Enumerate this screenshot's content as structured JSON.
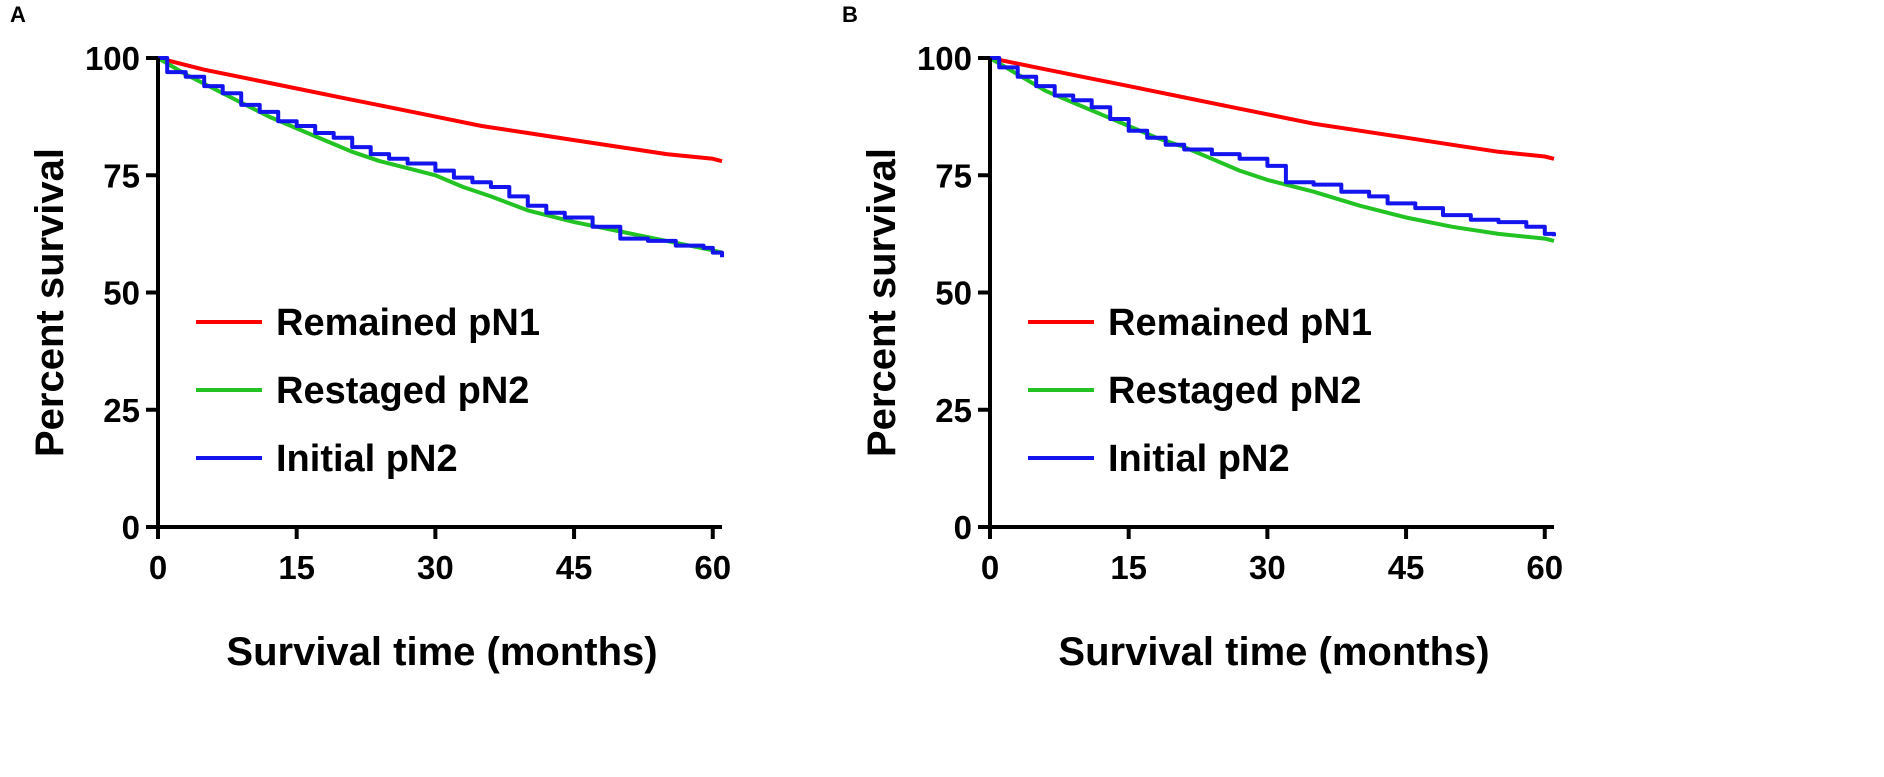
{
  "chart_data": [
    {
      "panel": "A",
      "type": "line",
      "xlabel": "Survival time (months)",
      "ylabel": "Percent survival",
      "xlim": [
        0,
        61
      ],
      "ylim": [
        0,
        100
      ],
      "xticks": [
        0,
        15,
        30,
        45,
        60
      ],
      "yticks": [
        0,
        25,
        50,
        75,
        100
      ],
      "grid": false,
      "legend": "lower-left",
      "series": [
        {
          "name": "Remained pN1",
          "color": "#ff0000",
          "step": false,
          "x": [
            0,
            5,
            10,
            15,
            20,
            25,
            30,
            35,
            40,
            45,
            50,
            55,
            60,
            61
          ],
          "y": [
            100,
            97.5,
            95.5,
            93.5,
            91.5,
            89.5,
            87.5,
            85.5,
            84,
            82.5,
            81,
            79.5,
            78.5,
            78
          ]
        },
        {
          "name": "Restaged pN2",
          "color": "#22c322",
          "step": false,
          "x": [
            0,
            3,
            6,
            9,
            12,
            15,
            18,
            21,
            24,
            27,
            30,
            33,
            36,
            40,
            45,
            50,
            55,
            60,
            61
          ],
          "y": [
            100,
            96.5,
            93.5,
            90.5,
            87.5,
            85,
            82.5,
            80,
            78,
            76.5,
            75,
            72.5,
            70.5,
            67.5,
            65,
            63,
            61,
            59,
            58.5
          ]
        },
        {
          "name": "Initial pN2",
          "color": "#1414ee",
          "step": true,
          "x": [
            0,
            1,
            3,
            5,
            7,
            9,
            11,
            13,
            15,
            17,
            19,
            21,
            23,
            25,
            27,
            30,
            32,
            34,
            36,
            38,
            40,
            42,
            44,
            47,
            50,
            53,
            56,
            59,
            60,
            61
          ],
          "y": [
            100,
            97,
            96,
            94,
            92.5,
            90,
            88.5,
            86.5,
            85.5,
            84,
            83,
            81,
            79.5,
            78.5,
            77.5,
            76,
            74.5,
            73.5,
            72.5,
            70.5,
            68.5,
            67,
            66,
            64,
            61.5,
            61,
            60,
            59.5,
            58.5,
            57.5
          ]
        }
      ],
      "legend_entries": [
        "Remained pN1",
        "Restaged pN2",
        "Initial pN2"
      ]
    },
    {
      "panel": "B",
      "type": "line",
      "xlabel": "Survival time (months)",
      "ylabel": "Percent survival",
      "xlim": [
        0,
        61
      ],
      "ylim": [
        0,
        100
      ],
      "xticks": [
        0,
        15,
        30,
        45,
        60
      ],
      "yticks": [
        0,
        25,
        50,
        75,
        100
      ],
      "grid": false,
      "legend": "lower-left",
      "series": [
        {
          "name": "Remained pN1",
          "color": "#ff0000",
          "step": false,
          "x": [
            0,
            5,
            10,
            15,
            20,
            25,
            30,
            35,
            40,
            45,
            50,
            55,
            60,
            61
          ],
          "y": [
            100,
            98,
            96,
            94,
            92,
            90,
            88,
            86,
            84.5,
            83,
            81.5,
            80,
            79,
            78.5
          ]
        },
        {
          "name": "Restaged pN2",
          "color": "#22c322",
          "step": false,
          "x": [
            0,
            3,
            6,
            9,
            12,
            15,
            18,
            21,
            24,
            27,
            30,
            35,
            40,
            45,
            50,
            55,
            60,
            61
          ],
          "y": [
            100,
            96.5,
            93,
            90.5,
            88,
            85.5,
            83,
            81,
            78.5,
            76,
            74,
            71.5,
            68.5,
            66,
            64,
            62.5,
            61.5,
            61
          ]
        },
        {
          "name": "Initial pN2",
          "color": "#1414ee",
          "step": true,
          "x": [
            0,
            1,
            3,
            5,
            7,
            9,
            11,
            13,
            15,
            17,
            19,
            21,
            24,
            27,
            30,
            32,
            35,
            38,
            41,
            43,
            46,
            49,
            52,
            55,
            58,
            60,
            61
          ],
          "y": [
            100,
            98,
            96,
            94,
            92,
            91,
            89.5,
            87,
            84.5,
            83,
            81.5,
            80.5,
            79.5,
            78.5,
            77,
            73.5,
            73,
            71.5,
            70.5,
            69,
            68,
            66.5,
            65.5,
            65,
            64,
            62.5,
            62
          ]
        }
      ],
      "legend_entries": [
        "Remained pN1",
        "Restaged pN2",
        "Initial pN2"
      ]
    }
  ]
}
